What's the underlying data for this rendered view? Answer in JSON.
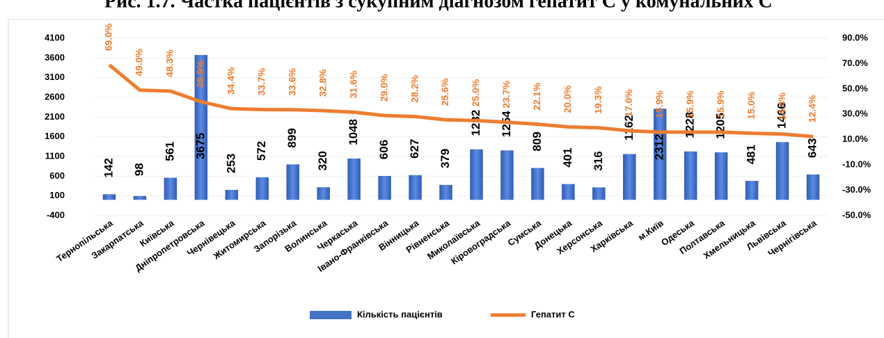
{
  "chart_data": {
    "type": "bar_line",
    "title": "Рис. 1.7. Частка пацієнтів з сукупним діагнозом гепатит С у комунальних С",
    "categories": [
      "Тернопільська",
      "Закарпатська",
      "Київська",
      "Дніпропетровська",
      "Чернівецька",
      "Житомирська",
      "Запорізька",
      "Волинська",
      "Черкаська",
      "Івано-Франківська",
      "Вінницька",
      "Рівненська",
      "Миколаївська",
      "Кіровоградська",
      "Сумська",
      "Донецька",
      "Херсонська",
      "Харківська",
      "м.Київ",
      "Одеська",
      "Полтавська",
      "Хмельницька",
      "Львівська",
      "Чернігівська"
    ],
    "series": [
      {
        "name": "Кількість пацієнтів",
        "type": "bar",
        "color": "#4472c4",
        "values": [
          142,
          98,
          561,
          3675,
          253,
          572,
          899,
          320,
          1048,
          606,
          627,
          379,
          1282,
          1254,
          809,
          401,
          316,
          1162,
          2312,
          1228,
          1205,
          481,
          1466,
          643
        ]
      },
      {
        "name": "Гепатит С",
        "type": "line",
        "axis": "y2",
        "color": "#ed7d31",
        "values": [
          69.0,
          49.0,
          48.3,
          39.9,
          34.4,
          33.7,
          33.6,
          32.8,
          31.6,
          29.0,
          28.2,
          25.6,
          25.0,
          23.7,
          22.1,
          20.0,
          19.3,
          17.0,
          15.9,
          15.9,
          15.9,
          15.0,
          14.4,
          12.4
        ],
        "value_labels": [
          "69.0%",
          "49.0%",
          "48.3%",
          "39.9%",
          "34.4%",
          "33.7%",
          "33.6%",
          "32.8%",
          "31.6%",
          "29.0%",
          "28.2%",
          "25.6%",
          "25.0%",
          "23.7%",
          "22.1%",
          "20.0%",
          "19.3%",
          "17.0%",
          "15.9%",
          "15.9%",
          "15.9%",
          "15.0%",
          "14.4%",
          "12.4%"
        ]
      }
    ],
    "ylim": [
      -400,
      4100
    ],
    "yticks": [
      -400,
      100,
      600,
      1100,
      1600,
      2100,
      2600,
      3100,
      3600,
      4100
    ],
    "y2lim": [
      -50,
      90
    ],
    "y2ticks": [
      {
        "value": -50,
        "label": "-50.0%"
      },
      {
        "value": -30,
        "label": "-30.0%"
      },
      {
        "value": -10,
        "label": "-10.0%"
      },
      {
        "value": 10,
        "label": "10.0%"
      },
      {
        "value": 30,
        "label": "30.0%"
      },
      {
        "value": 50,
        "label": "50.0%"
      },
      {
        "value": 70,
        "label": "70.0%"
      },
      {
        "value": 90,
        "label": "90.0%"
      }
    ],
    "grid": true,
    "legend": "bottom"
  }
}
